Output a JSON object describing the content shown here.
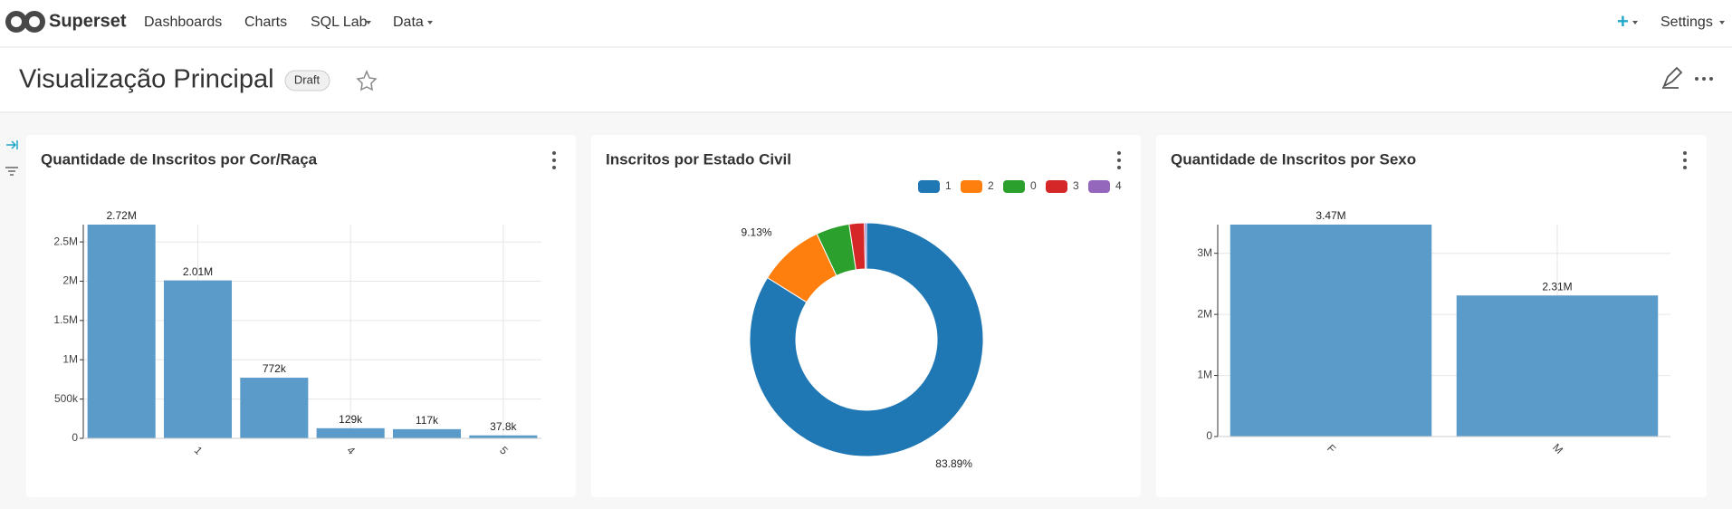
{
  "nav": {
    "brand": "Superset",
    "items": [
      "Dashboards",
      "Charts",
      "SQL Lab",
      "Data"
    ],
    "settings": "Settings"
  },
  "header": {
    "title": "Visualização Principal",
    "status": "Draft"
  },
  "chart_data": [
    {
      "type": "bar",
      "title": "Quantidade de Inscritos por Cor/Raça",
      "categories": [
        null,
        "1",
        null,
        "4",
        null,
        "5"
      ],
      "values": [
        2720000,
        2010000,
        772000,
        129000,
        117000,
        37800
      ],
      "value_labels": [
        "2.72M",
        "2.01M",
        "772k",
        "129k",
        "117k",
        "37.8k"
      ],
      "color": "#5b9bc9",
      "ylim": [
        0,
        2720000
      ],
      "yticks": [
        0,
        {
          "value": 500000,
          "label": "500k"
        },
        {
          "value": 1000000,
          "label": "1M"
        },
        {
          "value": 1500000,
          "label": "1.5M"
        },
        {
          "value": 2000000,
          "label": "2M"
        },
        {
          "value": 2500000,
          "label": "2.5M"
        }
      ],
      "grid": true
    },
    {
      "type": "pie",
      "title": "Inscritos por Estado Civil",
      "categories": [
        "1",
        "2",
        "0",
        "3",
        "4"
      ],
      "values": [
        83.89,
        9.13,
        4.6,
        2.1,
        0.28
      ],
      "value_labels": [
        "83.89%",
        "9.13%",
        null,
        null,
        null
      ],
      "colors": [
        "#1f77b4",
        "#ff7f0e",
        "#2ca02c",
        "#d62728",
        "#9467bd"
      ],
      "donut": true,
      "legend": "top-right"
    },
    {
      "type": "bar",
      "title": "Quantidade de Inscritos por Sexo",
      "categories": [
        "F",
        "M"
      ],
      "values": [
        3470000,
        2310000
      ],
      "value_labels": [
        "3.47M",
        "2.31M"
      ],
      "color": "#5b9bc9",
      "ylim": [
        0,
        3470000
      ],
      "yticks": [
        0,
        {
          "value": 1000000,
          "label": "1M"
        },
        {
          "value": 2000000,
          "label": "2M"
        },
        {
          "value": 3000000,
          "label": "3M"
        }
      ],
      "grid": true
    }
  ]
}
